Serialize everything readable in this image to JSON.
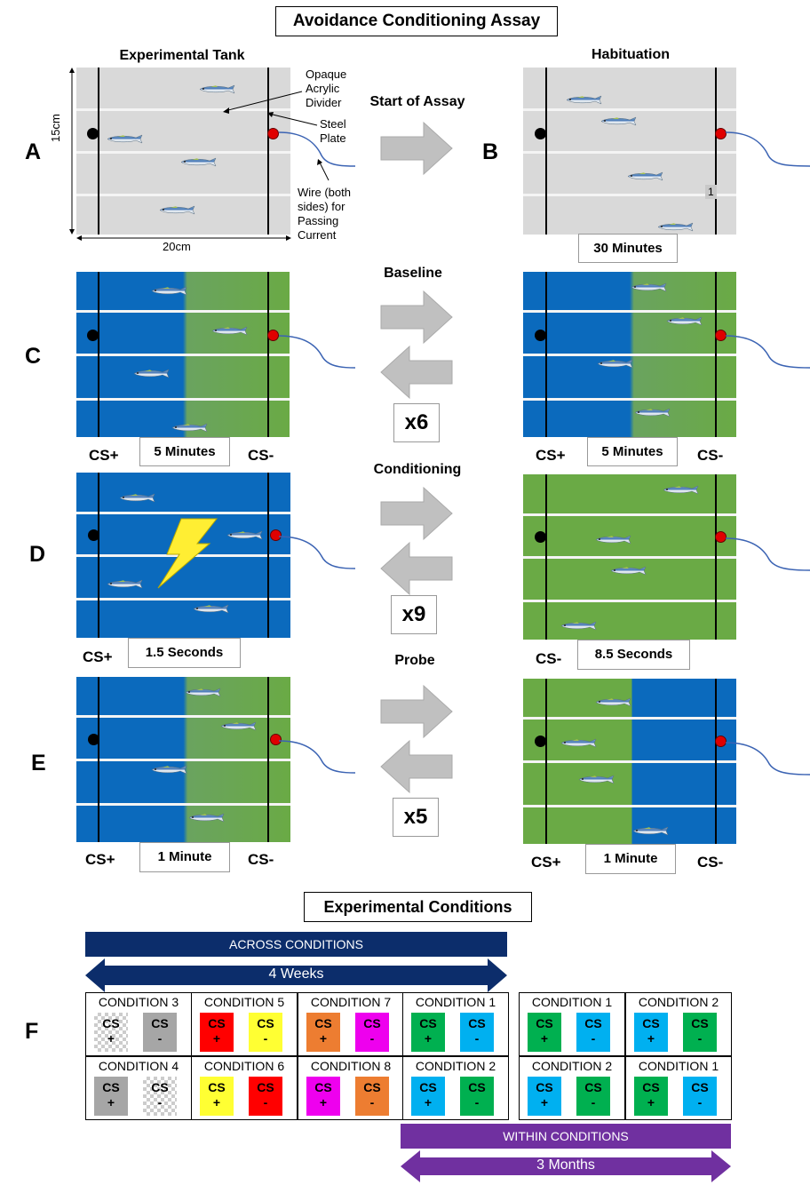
{
  "title": "Avoidance Conditioning Assay",
  "headings": {
    "experimental_tank": "Experimental Tank",
    "habituation": "Habituation",
    "start_of_assay": "Start of Assay",
    "baseline": "Baseline",
    "conditioning": "Conditioning",
    "probe": "Probe"
  },
  "panel_letters": [
    "A",
    "B",
    "C",
    "D",
    "E",
    "F"
  ],
  "annotations": {
    "divider": [
      "Opaque",
      "Acrylic",
      "Divider"
    ],
    "plate": [
      "Steel",
      "Plate"
    ],
    "wire": [
      "Wire (both",
      "sides) for",
      "Passing",
      "Current"
    ],
    "height": "15cm",
    "width": "20cm",
    "b_marker": "1"
  },
  "timers": {
    "habituation": "30 Minutes",
    "baseline_left": "5 Minutes",
    "baseline_right": "5 Minutes",
    "conditioning_left": "1.5 Seconds",
    "conditioning_right": "8.5 Seconds",
    "probe_left": "1 Minute",
    "probe_right": "1 Minute"
  },
  "multipliers": {
    "baseline": "x6",
    "conditioning": "x9",
    "probe": "x5"
  },
  "cs_labels": {
    "plus": "CS+",
    "minus": "CS-"
  },
  "conditions_title": "Experimental Conditions",
  "across": {
    "label": "ACROSS CONDITIONS",
    "duration": "4 Weeks"
  },
  "within": {
    "label": "WITHIN CONDITIONS",
    "duration": "3 Months"
  },
  "condition_grid": [
    {
      "name": "CONDITION 3",
      "a": {
        "t": "CS",
        "s": "+",
        "color": "checker"
      },
      "b": {
        "t": "CS",
        "s": "-",
        "color": "#a6a6a6"
      }
    },
    {
      "name": "CONDITION 5",
      "a": {
        "t": "CS",
        "s": "+",
        "color": "#ff0000"
      },
      "b": {
        "t": "CS",
        "s": "-",
        "color": "#ffff33"
      }
    },
    {
      "name": "CONDITION 7",
      "a": {
        "t": "CS",
        "s": "+",
        "color": "#ed7d31"
      },
      "b": {
        "t": "CS",
        "s": "-",
        "color": "#ee00ee"
      }
    },
    {
      "name": "CONDITION 1",
      "a": {
        "t": "CS",
        "s": "+",
        "color": "#00b050"
      },
      "b": {
        "t": "CS",
        "s": "-",
        "color": "#00b0f0"
      }
    },
    {
      "name": "CONDITION 1",
      "a": {
        "t": "CS",
        "s": "+",
        "color": "#00b050"
      },
      "b": {
        "t": "CS",
        "s": "-",
        "color": "#00b0f0"
      }
    },
    {
      "name": "CONDITION 2",
      "a": {
        "t": "CS",
        "s": "+",
        "color": "#00b0f0"
      },
      "b": {
        "t": "CS",
        "s": "-",
        "color": "#00b050"
      }
    },
    {
      "name": "CONDITION 4",
      "a": {
        "t": "CS",
        "s": "+",
        "color": "#a6a6a6"
      },
      "b": {
        "t": "CS",
        "s": "-",
        "color": "checker"
      }
    },
    {
      "name": "CONDITION 6",
      "a": {
        "t": "CS",
        "s": "+",
        "color": "#ffff33"
      },
      "b": {
        "t": "CS",
        "s": "-",
        "color": "#ff0000"
      }
    },
    {
      "name": "CONDITION 8",
      "a": {
        "t": "CS",
        "s": "+",
        "color": "#ee00ee"
      },
      "b": {
        "t": "CS",
        "s": "-",
        "color": "#ed7d31"
      }
    },
    {
      "name": "CONDITION 2",
      "a": {
        "t": "CS",
        "s": "+",
        "color": "#00b0f0"
      },
      "b": {
        "t": "CS",
        "s": "-",
        "color": "#00b050"
      }
    },
    {
      "name": "CONDITION 2",
      "a": {
        "t": "CS",
        "s": "+",
        "color": "#00b0f0"
      },
      "b": {
        "t": "CS",
        "s": "-",
        "color": "#00b050"
      }
    },
    {
      "name": "CONDITION 1",
      "a": {
        "t": "CS",
        "s": "+",
        "color": "#00b050"
      },
      "b": {
        "t": "CS",
        "s": "-",
        "color": "#00b0f0"
      }
    }
  ]
}
